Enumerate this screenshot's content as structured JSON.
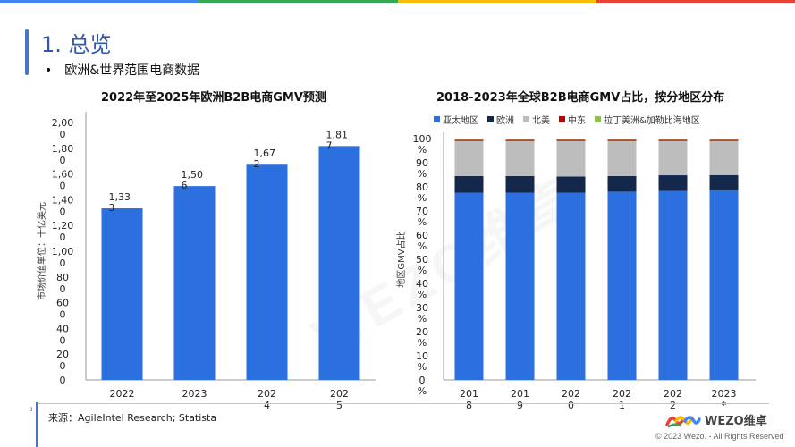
{
  "colors": {
    "stripe": [
      "#4285f4",
      "#34a853",
      "#fbbc05",
      "#ea4335"
    ],
    "accent": "#2f57b0"
  },
  "slide": {
    "title": "1. 总览",
    "bullet": "欧洲&世界范围电商数据",
    "source": "来源：AgileIntel Research; Statista",
    "page_number": "3",
    "logo_text": "WEZO维卓",
    "copyright": "© 2023 Wezo. - All Rights Reserved",
    "watermark": "WEZO维卓"
  },
  "chart_data": [
    {
      "type": "bar",
      "title": "2022年至2025年欧洲B2B电商GMV预测",
      "ylabel": "市场价值单位：十亿美元",
      "categories": [
        "2022",
        "2023",
        "2024",
        "2025"
      ],
      "category_labels": [
        [
          "2022"
        ],
        [
          "2023"
        ],
        [
          "202",
          "4"
        ],
        [
          "202",
          "5"
        ]
      ],
      "values": [
        1333,
        1506,
        1672,
        1817
      ],
      "data_labels": [
        [
          "1,33",
          "3"
        ],
        [
          "1,50",
          "6"
        ],
        [
          "1,67",
          "2"
        ],
        [
          "1,81",
          "7"
        ]
      ],
      "ylim": [
        0,
        2000
      ],
      "yticks": [
        [
          "2,00",
          "0"
        ],
        [
          "1,80",
          "0"
        ],
        [
          "1,60",
          "0"
        ],
        [
          "1,40",
          "0"
        ],
        [
          "1,20",
          "0"
        ],
        [
          "1,00",
          "0"
        ],
        [
          "80",
          "0"
        ],
        [
          "60",
          "0"
        ],
        [
          "40",
          "0"
        ],
        [
          "20",
          "0"
        ],
        [
          "0"
        ]
      ],
      "color": "#2c6fde"
    },
    {
      "type": "bar",
      "stacked": true,
      "title": "2018-2023年全球B2B电商GMV占比，按分地区分布",
      "ylabel": "地区GMV占比",
      "categories": [
        "2018",
        "2019",
        "2020",
        "2021",
        "2022",
        "2023*"
      ],
      "category_labels": [
        [
          "201",
          "8"
        ],
        [
          "201",
          "9"
        ],
        [
          "202",
          "0"
        ],
        [
          "202",
          "1"
        ],
        [
          "202",
          "2"
        ],
        [
          "2023",
          "*"
        ]
      ],
      "ylim": [
        0,
        100
      ],
      "yticks": [
        [
          "100",
          "%"
        ],
        [
          "90",
          "%"
        ],
        [
          "80",
          "%"
        ],
        [
          "70",
          "%"
        ],
        [
          "60",
          "%"
        ],
        [
          "50",
          "%"
        ],
        [
          "40",
          "%"
        ],
        [
          "30",
          "%"
        ],
        [
          "20",
          "%"
        ],
        [
          "10",
          "%"
        ],
        [
          "0",
          "%"
        ]
      ],
      "legend_position": "top",
      "series": [
        {
          "name": "亚太地区",
          "color": "#2c6fde",
          "values": [
            77.5,
            77.5,
            77.5,
            78.0,
            78.3,
            78.6
          ]
        },
        {
          "name": "欧洲",
          "color": "#14284b",
          "values": [
            7.0,
            7.0,
            6.8,
            6.5,
            6.5,
            6.3
          ]
        },
        {
          "name": "北美",
          "color": "#bdbdbd",
          "values": [
            14.5,
            14.5,
            14.7,
            14.5,
            14.2,
            14.1
          ]
        },
        {
          "name": "中东",
          "color": "#c00000",
          "values": [
            0.5,
            0.5,
            0.5,
            0.5,
            0.5,
            0.5
          ]
        },
        {
          "name": "拉丁美洲&加勒比海地区",
          "color": "#8bc34a",
          "values": [
            0.5,
            0.5,
            0.5,
            0.5,
            0.5,
            0.5
          ]
        }
      ]
    }
  ]
}
